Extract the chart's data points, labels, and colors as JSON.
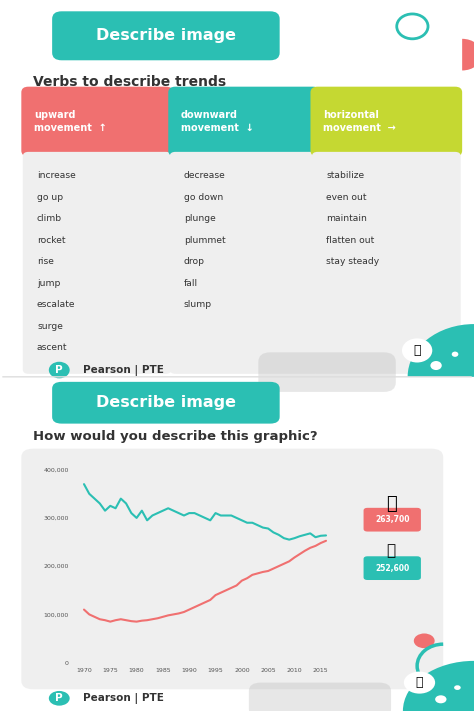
{
  "bg_color": "#ffffff",
  "teal_color": "#2bbfb3",
  "pink_color": "#f07070",
  "lime_color": "#c5d832",
  "light_gray": "#efefef",
  "dark_text": "#333333",
  "section1": {
    "badge_text": "Describe image",
    "title": "Verbs to describe trends",
    "columns": [
      {
        "header": "upward\nmovement",
        "arrow": "↑",
        "color": "#f07070",
        "words": [
          "increase",
          "go up",
          "climb",
          "rocket",
          "rise",
          "jump",
          "escalate",
          "surge",
          "ascent"
        ]
      },
      {
        "header": "downward\nmovement",
        "arrow": "↓",
        "color": "#2bbfb3",
        "words": [
          "decrease",
          "go down",
          "plunge",
          "plummet",
          "drop",
          "fall",
          "slump"
        ]
      },
      {
        "header": "horizontal\nmovement",
        "arrow": "→",
        "color": "#c5d832",
        "words": [
          "stabilize",
          "even out",
          "maintain",
          "flatten out",
          "stay steady"
        ]
      }
    ]
  },
  "section2": {
    "badge_text": "Describe image",
    "title": "How would you describe this graphic?",
    "chart": {
      "bike_label": "263,700",
      "car_label": "252,600",
      "years": [
        1970,
        1971,
        1972,
        1973,
        1974,
        1975,
        1976,
        1977,
        1978,
        1979,
        1980,
        1981,
        1982,
        1983,
        1984,
        1985,
        1986,
        1987,
        1988,
        1989,
        1990,
        1991,
        1992,
        1993,
        1994,
        1995,
        1996,
        1997,
        1998,
        1999,
        2000,
        2001,
        2002,
        2003,
        2004,
        2005,
        2006,
        2007,
        2008,
        2009,
        2010,
        2011,
        2012,
        2013,
        2014,
        2015,
        2016
      ],
      "teal_values": [
        370000,
        350000,
        340000,
        330000,
        315000,
        325000,
        320000,
        340000,
        330000,
        310000,
        300000,
        315000,
        295000,
        305000,
        310000,
        315000,
        320000,
        315000,
        310000,
        305000,
        310000,
        310000,
        305000,
        300000,
        295000,
        310000,
        305000,
        305000,
        305000,
        300000,
        295000,
        290000,
        290000,
        285000,
        280000,
        278000,
        270000,
        265000,
        258000,
        255000,
        258000,
        262000,
        265000,
        268000,
        260000,
        263000,
        263700
      ],
      "pink_values": [
        110000,
        100000,
        95000,
        90000,
        88000,
        85000,
        88000,
        90000,
        88000,
        86000,
        85000,
        87000,
        88000,
        90000,
        92000,
        95000,
        98000,
        100000,
        102000,
        105000,
        110000,
        115000,
        120000,
        125000,
        130000,
        140000,
        145000,
        150000,
        155000,
        160000,
        170000,
        175000,
        182000,
        185000,
        188000,
        190000,
        195000,
        200000,
        205000,
        210000,
        218000,
        225000,
        232000,
        238000,
        242000,
        248000,
        252600
      ]
    }
  }
}
